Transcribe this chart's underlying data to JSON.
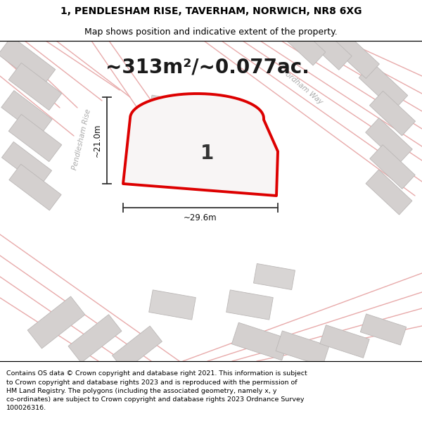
{
  "title_line1": "1, PENDLESHAM RISE, TAVERHAM, NORWICH, NR8 6XG",
  "title_line2": "Map shows position and indicative extent of the property.",
  "area_text": "~313m²/~0.077ac.",
  "property_number": "1",
  "dim_horizontal": "~29.6m",
  "dim_vertical": "~21.0m",
  "footer_line1": "Contains OS data © Crown copyright and database right 2021. This information is subject",
  "footer_line2": "to Crown copyright and database rights 2023 and is reproduced with the permission of",
  "footer_line3": "HM Land Registry. The polygons (including the associated geometry, namely x, y",
  "footer_line4": "co-ordinates) are subject to Crown copyright and database rights 2023 Ordnance Survey",
  "footer_line5": "100026316.",
  "map_bg": "#f0edec",
  "road_color": "#e8aaaa",
  "road_color2": "#d09090",
  "building_fill": "#d4d0cf",
  "building_edge": "#bbb7b6",
  "property_edge": "#dd0000",
  "property_fill": "#f8f5f5",
  "road_label_color": "#aaaaaa",
  "title_fontsize": 10,
  "subtitle_fontsize": 9,
  "area_fontsize": 20,
  "number_fontsize": 20,
  "dim_fontsize": 8.5,
  "road_label_fontsize": 7.5,
  "footer_fontsize": 6.8
}
